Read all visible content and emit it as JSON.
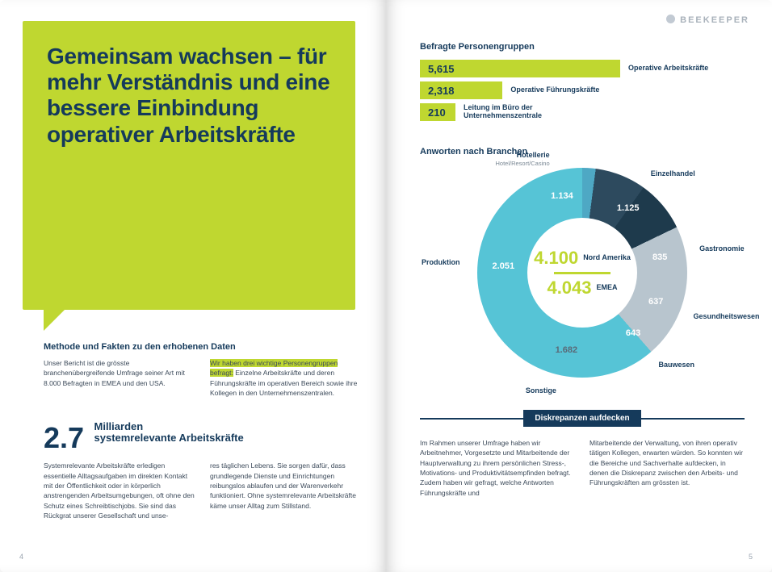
{
  "colors": {
    "accent": "#bfd730",
    "navy": "#153a5b"
  },
  "left": {
    "pageno": "4",
    "hero_title": "Gemeinsam wachsen – für mehr Verständnis und eine bessere Einbindung operativer Arbeitskräfte",
    "method_heading": "Methode und Fakten zu den erhobenen Daten",
    "method_col1": "Unser Bericht ist die grösste branchenübergreifende Umfrage seiner Art mit 8.000 Befragten in EMEA und den USA.",
    "method_hl": "Wir haben drei wichtige Personengruppen befragt:",
    "method_col2": " Einzelne Arbeitskräfte und deren Führungskräfte im operativen Bereich sowie ihre Kollegen in den Unternehmenszentralen.",
    "stat_big": "2.7",
    "stat_label1": "Milliarden",
    "stat_label2": "systemrelevante Arbeitskräfte",
    "stat_col1": "Systemrelevante Arbeitskräfte erledigen essentielle Alltagsaufgaben im direkten Kontakt mit der Öffentlichkeit oder in körperlich anstrengenden Arbeitsumgebungen, oft ohne den Schutz eines Schreibtischjobs. Sie sind das Rückgrat unserer Gesellschaft und unse-",
    "stat_col2": "res täglichen Lebens. Sie sorgen dafür, dass grundlegende Dienste und Einrichtungen reibungslos ablaufen und der Warenverkehr funktioniert. Ohne systemrelevante Arbeitskräfte käme unser Alltag zum Stillstand."
  },
  "right": {
    "pageno": "5",
    "brand": "BEEKEEPER",
    "groups_title": "Befragte Personengruppen",
    "groups": {
      "max": 5615,
      "full_width": 400,
      "items": [
        {
          "value": "5,615",
          "n": 5615,
          "label": "Operative Arbeitskräfte"
        },
        {
          "value": "2,318",
          "n": 2318,
          "label": "Operative Führungskräfte"
        },
        {
          "value": "210",
          "n": 210,
          "label": "Leitung im Büro der Unternehmenszentrale"
        }
      ]
    },
    "donut_title": "Anworten nach Branchen",
    "donut": {
      "center": [
        {
          "n": "4.100",
          "r": "Nord Amerika"
        },
        {
          "n": "4.043",
          "r": "EMEA"
        }
      ],
      "segments": [
        {
          "label": "Hotellerie",
          "sub": "Hotel/Resort/Casino",
          "value": "1.134",
          "n": 1134,
          "color": "#1f6f8b"
        },
        {
          "label": "Einzelhandel",
          "value": "1.125",
          "n": 1125,
          "color": "#2a89a8"
        },
        {
          "label": "Gastronomie",
          "value": "835",
          "n": 835,
          "color": "#4ea8c4"
        },
        {
          "label": "Gesundheitswesen",
          "value": "637",
          "n": 637,
          "color": "#2d4a5e"
        },
        {
          "label": "Bauwesen",
          "value": "643",
          "n": 643,
          "color": "#1e3a4c"
        },
        {
          "label": "Sonstige",
          "value": "1.682",
          "n": 1682,
          "color": "#b8c5ce"
        },
        {
          "label": "Produktion",
          "value": "2.051",
          "n": 2051,
          "color": "#56c4d6"
        }
      ]
    },
    "disc_heading": "Diskrepanzen aufdecken",
    "disc_col1": "Im Rahmen unserer Umfrage haben wir Arbeitnehmer, Vorgesetzte und Mitarbeitende der Hauptverwaltung zu ihrem persönlichen Stress-, Motivations- und Produktivitätsempfinden befragt. Zudem haben wir gefragt, welche Antworten Führungskräfte und",
    "disc_col2": "Mitarbeitende der Verwaltung, von ihren operativ tätigen Kollegen, erwarten würden. So konnten wir die Bereiche und Sachverhalte aufdecken, in denen die Diskrepanz zwischen den Arbeits- und Führungskräften am grössten ist."
  }
}
